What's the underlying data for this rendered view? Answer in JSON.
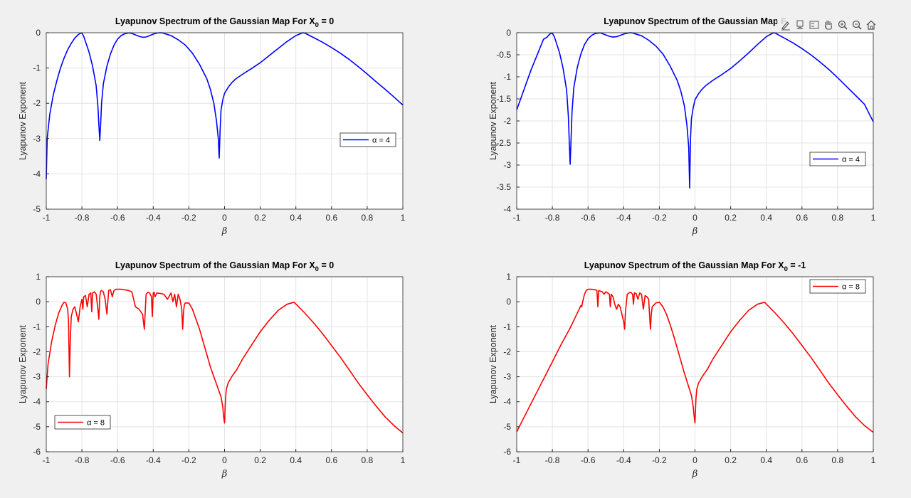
{
  "toolbar": {
    "icons": [
      "brush-icon",
      "datatip-icon",
      "legend-icon",
      "pan-icon",
      "zoom-in-icon",
      "zoom-out-icon",
      "home-icon"
    ]
  },
  "colors": {
    "blue": "#0000ff",
    "red": "#ff0000"
  },
  "chart_data": [
    {
      "type": "line",
      "title": "Lyapunov Spectrum of the Gaussian Map For X",
      "title_subscript": "0",
      "title_suffix": " = 0",
      "xlabel": "β",
      "ylabel": "Lyapunov Exponent",
      "xlim": [
        -1,
        1
      ],
      "ylim": [
        -5,
        0
      ],
      "xticks": [
        -1,
        -0.8,
        -0.6,
        -0.4,
        -0.2,
        0,
        0.2,
        0.4,
        0.6,
        0.8,
        1
      ],
      "yticks": [
        -5,
        -4,
        -3,
        -2,
        -1,
        0
      ],
      "grid": true,
      "legend_position": "right",
      "series": [
        {
          "name": "α = 4",
          "color": "#0000ff",
          "x": [
            -1,
            -0.995,
            -0.98,
            -0.96,
            -0.94,
            -0.92,
            -0.9,
            -0.88,
            -0.86,
            -0.84,
            -0.82,
            -0.81,
            -0.8,
            -0.79,
            -0.78,
            -0.76,
            -0.74,
            -0.72,
            -0.71,
            -0.705,
            -0.7,
            -0.695,
            -0.69,
            -0.68,
            -0.66,
            -0.64,
            -0.62,
            -0.6,
            -0.58,
            -0.56,
            -0.54,
            -0.53,
            -0.52,
            -0.5,
            -0.48,
            -0.46,
            -0.44,
            -0.42,
            -0.4,
            -0.38,
            -0.36,
            -0.35,
            -0.34,
            -0.3,
            -0.26,
            -0.22,
            -0.18,
            -0.14,
            -0.1,
            -0.08,
            -0.06,
            -0.045,
            -0.035,
            -0.03,
            -0.025,
            -0.02,
            -0.01,
            0,
            0.02,
            0.04,
            0.06,
            0.1,
            0.15,
            0.2,
            0.25,
            0.3,
            0.35,
            0.4,
            0.44,
            0.45,
            0.5,
            0.55,
            0.6,
            0.65,
            0.7,
            0.75,
            0.8,
            0.85,
            0.9,
            0.95,
            1
          ],
          "y": [
            -4.15,
            -3.0,
            -2.3,
            -1.75,
            -1.35,
            -1.0,
            -0.72,
            -0.48,
            -0.3,
            -0.15,
            -0.05,
            -0.02,
            -0.01,
            -0.1,
            -0.25,
            -0.55,
            -0.95,
            -1.5,
            -2.1,
            -2.6,
            -3.05,
            -2.6,
            -2.0,
            -1.45,
            -0.95,
            -0.6,
            -0.35,
            -0.18,
            -0.08,
            -0.03,
            -0.01,
            -0.005,
            -0.02,
            -0.06,
            -0.1,
            -0.13,
            -0.12,
            -0.08,
            -0.04,
            -0.01,
            0,
            -0.005,
            -0.02,
            -0.08,
            -0.2,
            -0.35,
            -0.58,
            -0.9,
            -1.3,
            -1.6,
            -2.0,
            -2.5,
            -3.0,
            -3.55,
            -2.8,
            -2.2,
            -1.9,
            -1.72,
            -1.55,
            -1.42,
            -1.32,
            -1.18,
            -1.02,
            -0.85,
            -0.65,
            -0.45,
            -0.25,
            -0.08,
            0,
            -0.01,
            -0.14,
            -0.27,
            -0.42,
            -0.58,
            -0.76,
            -0.96,
            -1.17,
            -1.39,
            -1.6,
            -1.82,
            -2.05
          ]
        }
      ]
    },
    {
      "type": "line",
      "title": "Lyapunov Spectrum of the Gaussian Map F",
      "title_subscript": "",
      "title_suffix": "",
      "xlabel": "β",
      "ylabel": "Lyapunov Exponent",
      "xlim": [
        -1,
        1
      ],
      "ylim": [
        -4,
        0
      ],
      "xticks": [
        -1,
        -0.8,
        -0.6,
        -0.4,
        -0.2,
        0,
        0.2,
        0.4,
        0.6,
        0.8,
        1
      ],
      "yticks": [
        -4,
        -3.5,
        -3,
        -2.5,
        -2,
        -1.5,
        -1,
        -0.5,
        0
      ],
      "grid": true,
      "legend_position": "right",
      "series": [
        {
          "name": "α = 4",
          "color": "#0000ff",
          "x": [
            -1,
            -0.96,
            -0.92,
            -0.88,
            -0.85,
            -0.83,
            -0.82,
            -0.81,
            -0.8,
            -0.79,
            -0.78,
            -0.76,
            -0.74,
            -0.72,
            -0.71,
            -0.705,
            -0.7,
            -0.695,
            -0.69,
            -0.68,
            -0.66,
            -0.64,
            -0.62,
            -0.6,
            -0.58,
            -0.56,
            -0.54,
            -0.53,
            -0.52,
            -0.5,
            -0.48,
            -0.46,
            -0.44,
            -0.42,
            -0.4,
            -0.38,
            -0.36,
            -0.35,
            -0.34,
            -0.3,
            -0.26,
            -0.22,
            -0.18,
            -0.14,
            -0.1,
            -0.08,
            -0.06,
            -0.045,
            -0.035,
            -0.03,
            -0.025,
            -0.02,
            -0.01,
            0,
            0.02,
            0.04,
            0.06,
            0.1,
            0.15,
            0.2,
            0.25,
            0.3,
            0.35,
            0.4,
            0.44,
            0.45,
            0.5,
            0.55,
            0.6,
            0.65,
            0.7,
            0.75,
            0.8,
            0.85,
            0.9,
            0.95,
            1
          ],
          "y": [
            -1.75,
            -1.3,
            -0.85,
            -0.45,
            -0.15,
            -0.1,
            -0.05,
            -0.02,
            -0.01,
            -0.08,
            -0.2,
            -0.45,
            -0.8,
            -1.3,
            -1.9,
            -2.5,
            -2.98,
            -2.4,
            -1.8,
            -1.25,
            -0.78,
            -0.48,
            -0.27,
            -0.14,
            -0.06,
            -0.02,
            -0.005,
            -0.005,
            -0.02,
            -0.05,
            -0.08,
            -0.1,
            -0.09,
            -0.06,
            -0.03,
            -0.01,
            0,
            -0.005,
            -0.02,
            -0.07,
            -0.17,
            -0.3,
            -0.48,
            -0.75,
            -1.08,
            -1.32,
            -1.65,
            -2.1,
            -2.6,
            -3.52,
            -2.4,
            -1.95,
            -1.7,
            -1.52,
            -1.38,
            -1.28,
            -1.2,
            -1.08,
            -0.95,
            -0.81,
            -0.64,
            -0.46,
            -0.27,
            -0.09,
            0,
            -0.01,
            -0.12,
            -0.23,
            -0.36,
            -0.5,
            -0.66,
            -0.83,
            -1.02,
            -1.22,
            -1.42,
            -1.62,
            -2.02
          ]
        }
      ]
    },
    {
      "type": "line",
      "title": "Lyapunov Spectrum of the Gaussian Map For X",
      "title_subscript": "0",
      "title_suffix": " = 0",
      "xlabel": "β",
      "ylabel": "Lyapunov Exponent",
      "xlim": [
        -1,
        1
      ],
      "ylim": [
        -6,
        1
      ],
      "xticks": [
        -1,
        -0.8,
        -0.6,
        -0.4,
        -0.2,
        0,
        0.2,
        0.4,
        0.6,
        0.8,
        1
      ],
      "yticks": [
        -6,
        -5,
        -4,
        -3,
        -2,
        -1,
        0,
        1
      ],
      "grid": true,
      "legend_position": "bottom-left",
      "series": [
        {
          "name": "α = 8",
          "color": "#ff0000",
          "x": [
            -1,
            -0.99,
            -0.97,
            -0.95,
            -0.93,
            -0.91,
            -0.9,
            -0.89,
            -0.88,
            -0.875,
            -0.87,
            -0.865,
            -0.86,
            -0.85,
            -0.84,
            -0.83,
            -0.82,
            -0.81,
            -0.8,
            -0.795,
            -0.79,
            -0.78,
            -0.77,
            -0.76,
            -0.75,
            -0.745,
            -0.74,
            -0.73,
            -0.72,
            -0.71,
            -0.705,
            -0.7,
            -0.695,
            -0.69,
            -0.68,
            -0.67,
            -0.66,
            -0.65,
            -0.64,
            -0.63,
            -0.62,
            -0.61,
            -0.6,
            -0.58,
            -0.56,
            -0.54,
            -0.52,
            -0.5,
            -0.48,
            -0.46,
            -0.45,
            -0.44,
            -0.43,
            -0.42,
            -0.41,
            -0.405,
            -0.4,
            -0.395,
            -0.39,
            -0.38,
            -0.36,
            -0.34,
            -0.32,
            -0.3,
            -0.29,
            -0.28,
            -0.27,
            -0.26,
            -0.25,
            -0.24,
            -0.235,
            -0.23,
            -0.225,
            -0.22,
            -0.2,
            -0.18,
            -0.16,
            -0.14,
            -0.12,
            -0.1,
            -0.08,
            -0.06,
            -0.04,
            -0.02,
            -0.01,
            -0.005,
            0,
            0.005,
            0.01,
            0.02,
            0.04,
            0.07,
            0.1,
            0.15,
            0.2,
            0.25,
            0.3,
            0.35,
            0.39,
            0.45,
            0.5,
            0.55,
            0.6,
            0.65,
            0.7,
            0.75,
            0.8,
            0.85,
            0.9,
            0.95,
            1
          ],
          "y": [
            -3.5,
            -2.5,
            -1.6,
            -0.95,
            -0.45,
            -0.12,
            -0.02,
            -0.05,
            -0.3,
            -0.8,
            -3.0,
            -1.5,
            -0.6,
            -0.3,
            -0.2,
            -0.5,
            -0.8,
            -0.2,
            0.1,
            -0.3,
            0.2,
            0.25,
            -0.2,
            0.3,
            0.35,
            -0.4,
            0.35,
            0.4,
            0.3,
            -0.3,
            -0.7,
            0.2,
            0.42,
            0.45,
            0.4,
            0.1,
            -0.5,
            0.45,
            0.48,
            0.2,
            0.45,
            0.5,
            0.5,
            0.5,
            0.48,
            0.45,
            0.4,
            -0.2,
            -0.3,
            -0.5,
            -1.1,
            0.3,
            0.38,
            0.35,
            0.2,
            -0.6,
            0.35,
            0.38,
            0.2,
            0.35,
            0.33,
            0.3,
            0.1,
            0.35,
            0.0,
            0.3,
            -0.2,
            0.3,
            0.1,
            -0.3,
            -1.1,
            -0.4,
            -0.1,
            -0.05,
            -0.05,
            -0.3,
            -0.7,
            -1.1,
            -1.6,
            -2.1,
            -2.6,
            -3.0,
            -3.4,
            -3.8,
            -4.2,
            -4.6,
            -4.85,
            -3.9,
            -3.5,
            -3.25,
            -3.0,
            -2.7,
            -2.3,
            -1.75,
            -1.2,
            -0.75,
            -0.35,
            -0.1,
            -0.02,
            -0.45,
            -0.85,
            -1.28,
            -1.75,
            -2.22,
            -2.73,
            -3.25,
            -3.72,
            -4.17,
            -4.6,
            -4.95,
            -5.25
          ]
        }
      ]
    },
    {
      "type": "line",
      "title": "Lyapunov Spectrum of the Gaussian Map For X",
      "title_subscript": "0",
      "title_suffix": " = -1",
      "xlabel": "β",
      "ylabel": "Lyapunov Exponent",
      "xlim": [
        -1,
        1
      ],
      "ylim": [
        -6,
        1
      ],
      "xticks": [
        -1,
        -0.8,
        -0.6,
        -0.4,
        -0.2,
        0,
        0.2,
        0.4,
        0.6,
        0.8,
        1
      ],
      "yticks": [
        -6,
        -5,
        -4,
        -3,
        -2,
        -1,
        0,
        1
      ],
      "grid": true,
      "legend_position": "top-right",
      "series": [
        {
          "name": "α = 8",
          "color": "#ff0000",
          "x": [
            -1,
            -0.95,
            -0.9,
            -0.85,
            -0.8,
            -0.75,
            -0.7,
            -0.67,
            -0.65,
            -0.64,
            -0.635,
            -0.63,
            -0.62,
            -0.61,
            -0.6,
            -0.58,
            -0.56,
            -0.55,
            -0.545,
            -0.54,
            -0.53,
            -0.52,
            -0.51,
            -0.5,
            -0.49,
            -0.48,
            -0.475,
            -0.47,
            -0.46,
            -0.45,
            -0.44,
            -0.43,
            -0.42,
            -0.41,
            -0.4,
            -0.395,
            -0.39,
            -0.38,
            -0.37,
            -0.36,
            -0.35,
            -0.345,
            -0.34,
            -0.33,
            -0.32,
            -0.31,
            -0.3,
            -0.29,
            -0.28,
            -0.27,
            -0.26,
            -0.255,
            -0.25,
            -0.245,
            -0.24,
            -0.22,
            -0.2,
            -0.18,
            -0.16,
            -0.14,
            -0.12,
            -0.1,
            -0.08,
            -0.06,
            -0.04,
            -0.02,
            -0.01,
            -0.005,
            0,
            0.005,
            0.01,
            0.02,
            0.04,
            0.07,
            0.1,
            0.15,
            0.2,
            0.25,
            0.3,
            0.35,
            0.39,
            0.45,
            0.5,
            0.55,
            0.6,
            0.65,
            0.7,
            0.75,
            0.8,
            0.85,
            0.9,
            0.95,
            1
          ],
          "y": [
            -5.2,
            -4.5,
            -3.8,
            -3.1,
            -2.4,
            -1.7,
            -1.05,
            -0.6,
            -0.3,
            -0.15,
            -0.2,
            0.0,
            0.3,
            0.45,
            0.5,
            0.5,
            0.48,
            0.45,
            -0.2,
            0.45,
            0.42,
            0.4,
            0.3,
            0.4,
            0.35,
            0.3,
            -0.2,
            0.3,
            0.2,
            -0.1,
            -0.3,
            -0.1,
            -0.2,
            -0.5,
            -0.8,
            -1.1,
            -0.4,
            0.3,
            0.35,
            0.38,
            0.3,
            -0.1,
            0.35,
            0.33,
            0.1,
            0.35,
            0.3,
            -0.3,
            0.25,
            0.2,
            0.1,
            -0.5,
            -1.1,
            -0.5,
            -0.2,
            -0.05,
            -0.02,
            -0.2,
            -0.5,
            -0.9,
            -1.35,
            -1.85,
            -2.35,
            -2.85,
            -3.3,
            -3.75,
            -4.2,
            -4.55,
            -4.85,
            -3.9,
            -3.5,
            -3.25,
            -3.0,
            -2.7,
            -2.3,
            -1.75,
            -1.2,
            -0.75,
            -0.35,
            -0.1,
            -0.02,
            -0.45,
            -0.85,
            -1.28,
            -1.75,
            -2.22,
            -2.73,
            -3.25,
            -3.72,
            -4.17,
            -4.6,
            -4.95,
            -5.22
          ]
        }
      ]
    }
  ]
}
